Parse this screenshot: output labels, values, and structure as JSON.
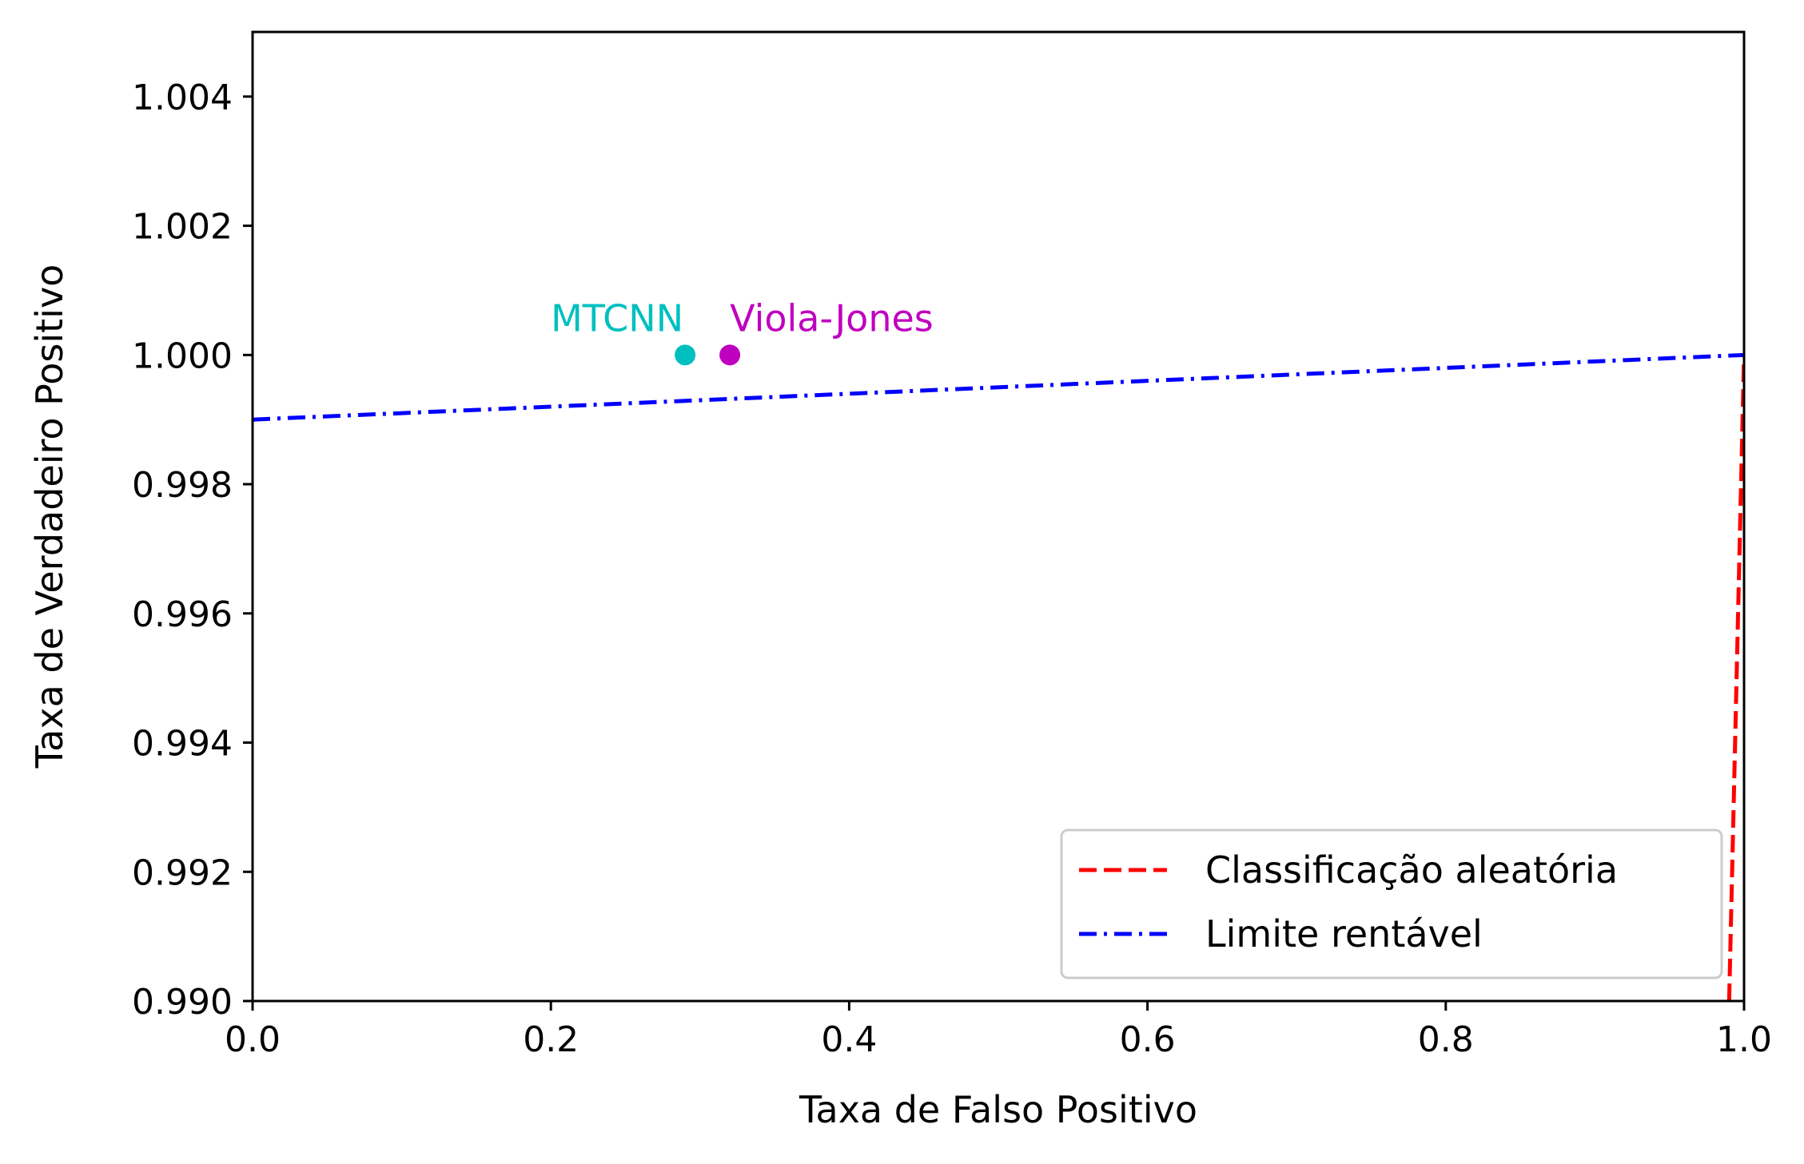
{
  "chart_data": {
    "type": "line",
    "xlabel": "Taxa de Falso Positivo",
    "ylabel": "Taxa de Verdadeiro Positivo",
    "xlim": [
      0.0,
      1.0
    ],
    "ylim": [
      0.99,
      1.005
    ],
    "x_ticks": [
      0.0,
      0.2,
      0.4,
      0.6,
      0.8,
      1.0
    ],
    "x_tick_labels": [
      "0.0",
      "0.2",
      "0.4",
      "0.6",
      "0.8",
      "1.0"
    ],
    "y_ticks": [
      0.99,
      0.992,
      0.994,
      0.996,
      0.998,
      1.0,
      1.002,
      1.004
    ],
    "y_tick_labels": [
      "0.990",
      "0.992",
      "0.994",
      "0.996",
      "0.998",
      "1.000",
      "1.002",
      "1.004"
    ],
    "grid": false,
    "legend_position": "lower-right",
    "series": [
      {
        "name": "Classificação aleatória",
        "style": "dashed",
        "color": "#ff0000",
        "x": [
          0.99,
          1.0
        ],
        "y": [
          0.99,
          1.0
        ]
      },
      {
        "name": "Limite rentável",
        "style": "dashdot",
        "color": "#0000ff",
        "x": [
          0.0,
          1.0
        ],
        "y": [
          0.999,
          1.0
        ]
      }
    ],
    "points": [
      {
        "label": "MTCNN",
        "x": 0.29,
        "y": 1.0,
        "color": "#00bfbf",
        "label_anchor": "end"
      },
      {
        "label": "Viola-Jones",
        "x": 0.32,
        "y": 1.0,
        "color": "#bf00bf",
        "label_anchor": "start"
      }
    ]
  }
}
